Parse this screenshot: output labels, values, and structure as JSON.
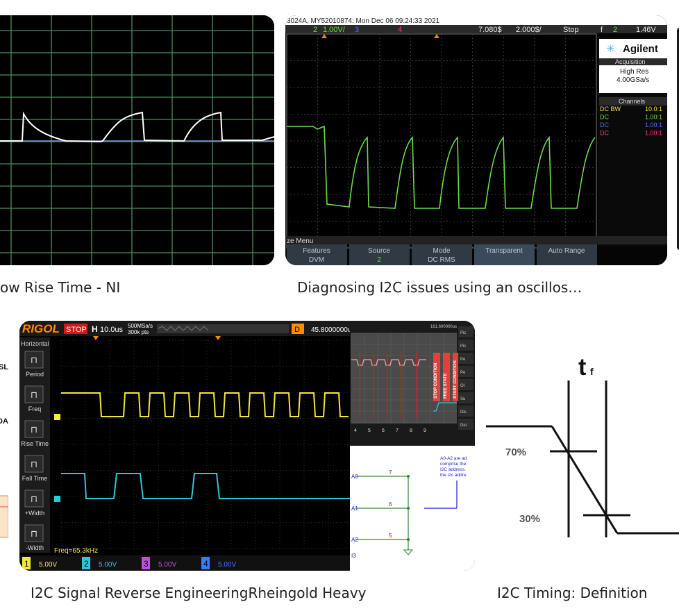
{
  "results": [
    {
      "caption": "ow Rise Time - NI"
    },
    {
      "caption": "Diagnosing I2C issues using an oscillos…",
      "scope": {
        "header": "3024A, MY52010874: Mon Dec 06 09:24:33 2021",
        "ch2_scale": "1.00V/",
        "ch3": "3",
        "ch4": "4",
        "time_offset": "7.080$",
        "time_scale": "2.000$/",
        "run_state": "Stop",
        "trigger_ch": "2",
        "trigger_level": "1.46V",
        "brand": "Agilent",
        "acq_title": "Acquisition",
        "acq_mode": "High Res",
        "acq_rate": "4.00GSa/s",
        "channels_title": "Channels",
        "channels": [
          {
            "coupling": "DC BW",
            "ratio": "10.0:1",
            "color": "#f2e83a"
          },
          {
            "coupling": "DC",
            "ratio": "1.00:1",
            "color": "#6bdc4a"
          },
          {
            "coupling": "DC",
            "ratio": "1.00:1",
            "color": "#5a6cff"
          },
          {
            "coupling": "DC",
            "ratio": "1.00:1",
            "color": "#ff3b6b"
          }
        ],
        "menu_title": "ze Menu",
        "softkeys": [
          {
            "label": "Features",
            "value": "DVM"
          },
          {
            "label": "Source",
            "value": "2"
          },
          {
            "label": "Mode",
            "value": "DC RMS"
          },
          {
            "label": "Transparent",
            "value": ""
          },
          {
            "label": "Auto Range",
            "value": ""
          }
        ]
      }
    },
    {
      "caption": "",
      "labels": [
        "SL",
        "DA"
      ]
    },
    {
      "caption": "I2C Signal Reverse EngineeringRheingold Heavy",
      "scope": {
        "brand": "RIGOL",
        "state": "STOP",
        "h_label": "H",
        "timebase": "10.0us",
        "sample_rate": "500MSa/s",
        "points": "300k pts",
        "d_label": "D",
        "delay": "45.8000000u",
        "side_title": "Horizontal",
        "side_buttons": [
          "Period",
          "Freq",
          "Rise Time",
          "Fall Time",
          "+Width",
          "-Width"
        ],
        "freq_readout": "Freq=65.3kHz",
        "channels": [
          {
            "num": "1",
            "scale": "5.00V",
            "color": "#f2e83a"
          },
          {
            "num": "2",
            "scale": "5.00V",
            "color": "#2ec7d6"
          },
          {
            "num": "3",
            "scale": "5.00V",
            "color": "#c050e0"
          },
          {
            "num": "4",
            "scale": "5.00V",
            "color": "#3a7bff"
          }
        ]
      },
      "mini_scope": {
        "top_readout": "161.600000us",
        "labels": [
          "STOP CONDITION",
          "FREE STATE",
          "START CONDITION"
        ],
        "tick_numbers": [
          "4",
          "5",
          "6",
          "7",
          "8",
          "9"
        ],
        "side_buttons": [
          "Pic",
          "Pic",
          "Pe",
          "Pe",
          "Ol",
          "Su",
          "Dis",
          "Del"
        ]
      },
      "schematic": {
        "pins": [
          "A0",
          "A1",
          "A2",
          "I3"
        ],
        "nets": [
          "7",
          "6",
          "5"
        ],
        "note": "A0-A2 are ad\ncomprise the\nI2C address. \nthe i2c addre"
      }
    },
    {
      "caption": "I2C Timing: Definition",
      "diagram": {
        "title": "t",
        "title_sub": "f",
        "level_high": "70%",
        "level_low": "30%"
      }
    }
  ]
}
